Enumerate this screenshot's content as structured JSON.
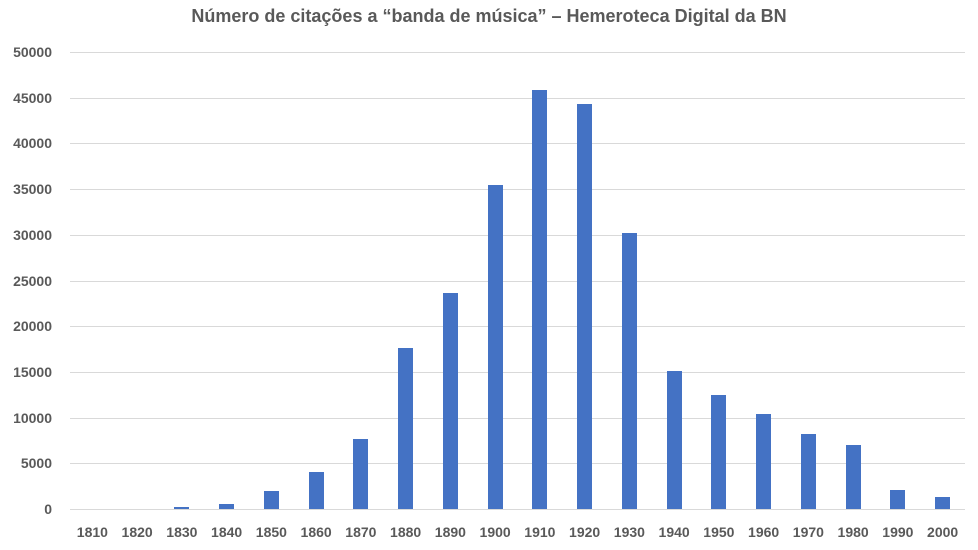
{
  "chart_data": {
    "type": "bar",
    "title": "Número de citações a “banda de música” – Hemeroteca Digital da BN",
    "xlabel": "",
    "ylabel": "",
    "categories": [
      "1810",
      "1820",
      "1830",
      "1840",
      "1850",
      "1860",
      "1870",
      "1880",
      "1890",
      "1900",
      "1910",
      "1920",
      "1930",
      "1940",
      "1950",
      "1960",
      "1970",
      "1980",
      "1990",
      "2000"
    ],
    "values": [
      0,
      0,
      200,
      600,
      2000,
      4000,
      7700,
      17600,
      23600,
      35400,
      45800,
      44300,
      30200,
      15100,
      12500,
      10400,
      8200,
      7000,
      2100,
      1300
    ],
    "ylim": [
      0,
      50000
    ],
    "yticks": [
      "0",
      "5000",
      "10000",
      "15000",
      "20000",
      "25000",
      "30000",
      "35000",
      "40000",
      "45000",
      "50000"
    ],
    "grid": true,
    "legend": "none",
    "bar_color": "#4472c4"
  }
}
